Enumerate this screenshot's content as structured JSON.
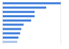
{
  "chart_data": {
    "type": "bar",
    "orientation": "horizontal",
    "categories": [
      null,
      null,
      null,
      null,
      null,
      null,
      null,
      null,
      null,
      null
    ],
    "values": [
      100,
      75,
      55,
      55,
      49,
      36,
      32,
      30,
      27,
      25
    ],
    "colors": [
      "#3f7fdc",
      "#3f7fdc",
      "#3f7fdc",
      "#3f7fdc",
      "#3f7fdc",
      "#3f7fdc",
      "#3f7fdc",
      "#3f7fdc",
      "#3f7fdc",
      "#a9c3ea"
    ],
    "xlim": [
      0,
      100
    ],
    "xticks": [
      0,
      25,
      50,
      75,
      100
    ],
    "grid": true,
    "tick_labels": false
  }
}
